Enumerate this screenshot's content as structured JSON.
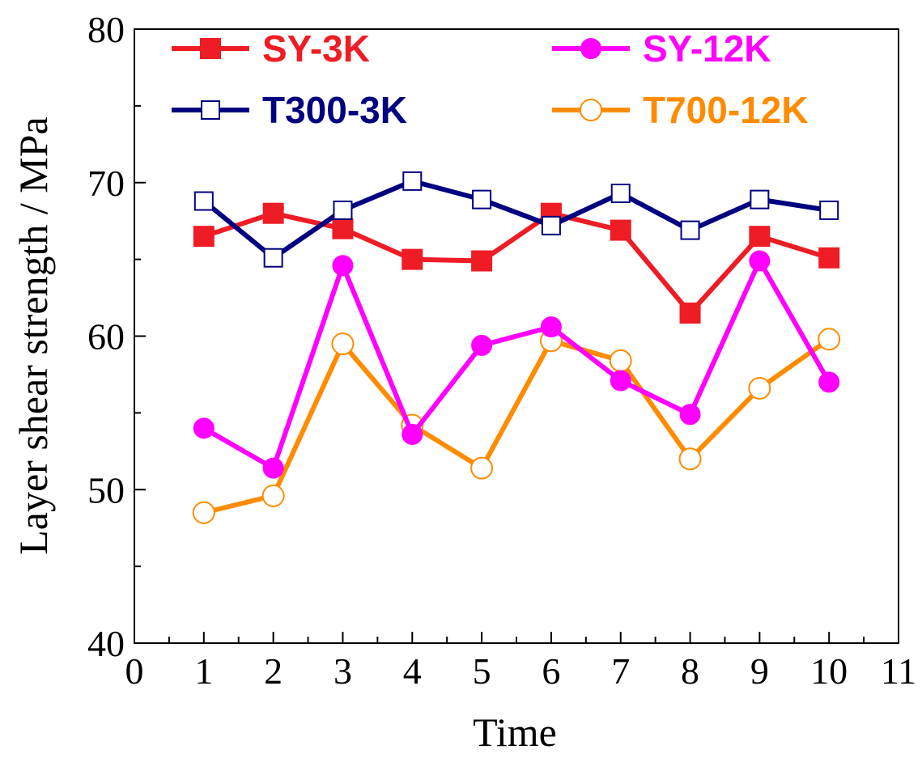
{
  "chart_data": {
    "type": "line",
    "title": "",
    "xlabel": "Time",
    "ylabel": "Layer shear strength / MPa",
    "xlim": [
      0,
      11
    ],
    "ylim": [
      40,
      80
    ],
    "xticks": [
      "0",
      "1",
      "2",
      "3",
      "4",
      "5",
      "6",
      "7",
      "8",
      "9",
      "10",
      "11"
    ],
    "yticks": [
      "40",
      "50",
      "60",
      "70",
      "80"
    ],
    "x": [
      1,
      2,
      3,
      4,
      5,
      6,
      7,
      8,
      9,
      10
    ],
    "grid": false,
    "legend_position": "top",
    "series": [
      {
        "name": "SY-3K",
        "color": "#ee1c25",
        "marker": "filled-square",
        "values": [
          66.5,
          68.0,
          67.0,
          65.0,
          64.9,
          68.0,
          66.9,
          61.5,
          66.5,
          65.1
        ]
      },
      {
        "name": "SY-12K",
        "color": "#ff00ff",
        "marker": "filled-circle",
        "values": [
          54.0,
          51.4,
          64.6,
          53.6,
          59.4,
          60.6,
          57.1,
          54.9,
          64.9,
          57.0
        ]
      },
      {
        "name": "T300-3K",
        "color": "#000080",
        "marker": "open-square",
        "values": [
          68.8,
          65.1,
          68.2,
          70.1,
          68.9,
          67.2,
          69.3,
          66.9,
          68.9,
          68.2
        ]
      },
      {
        "name": "T700-12K",
        "color": "#ff8c00",
        "marker": "open-circle",
        "values": [
          48.5,
          49.6,
          59.5,
          54.2,
          51.4,
          59.7,
          58.4,
          52.0,
          56.6,
          59.8
        ]
      }
    ]
  }
}
